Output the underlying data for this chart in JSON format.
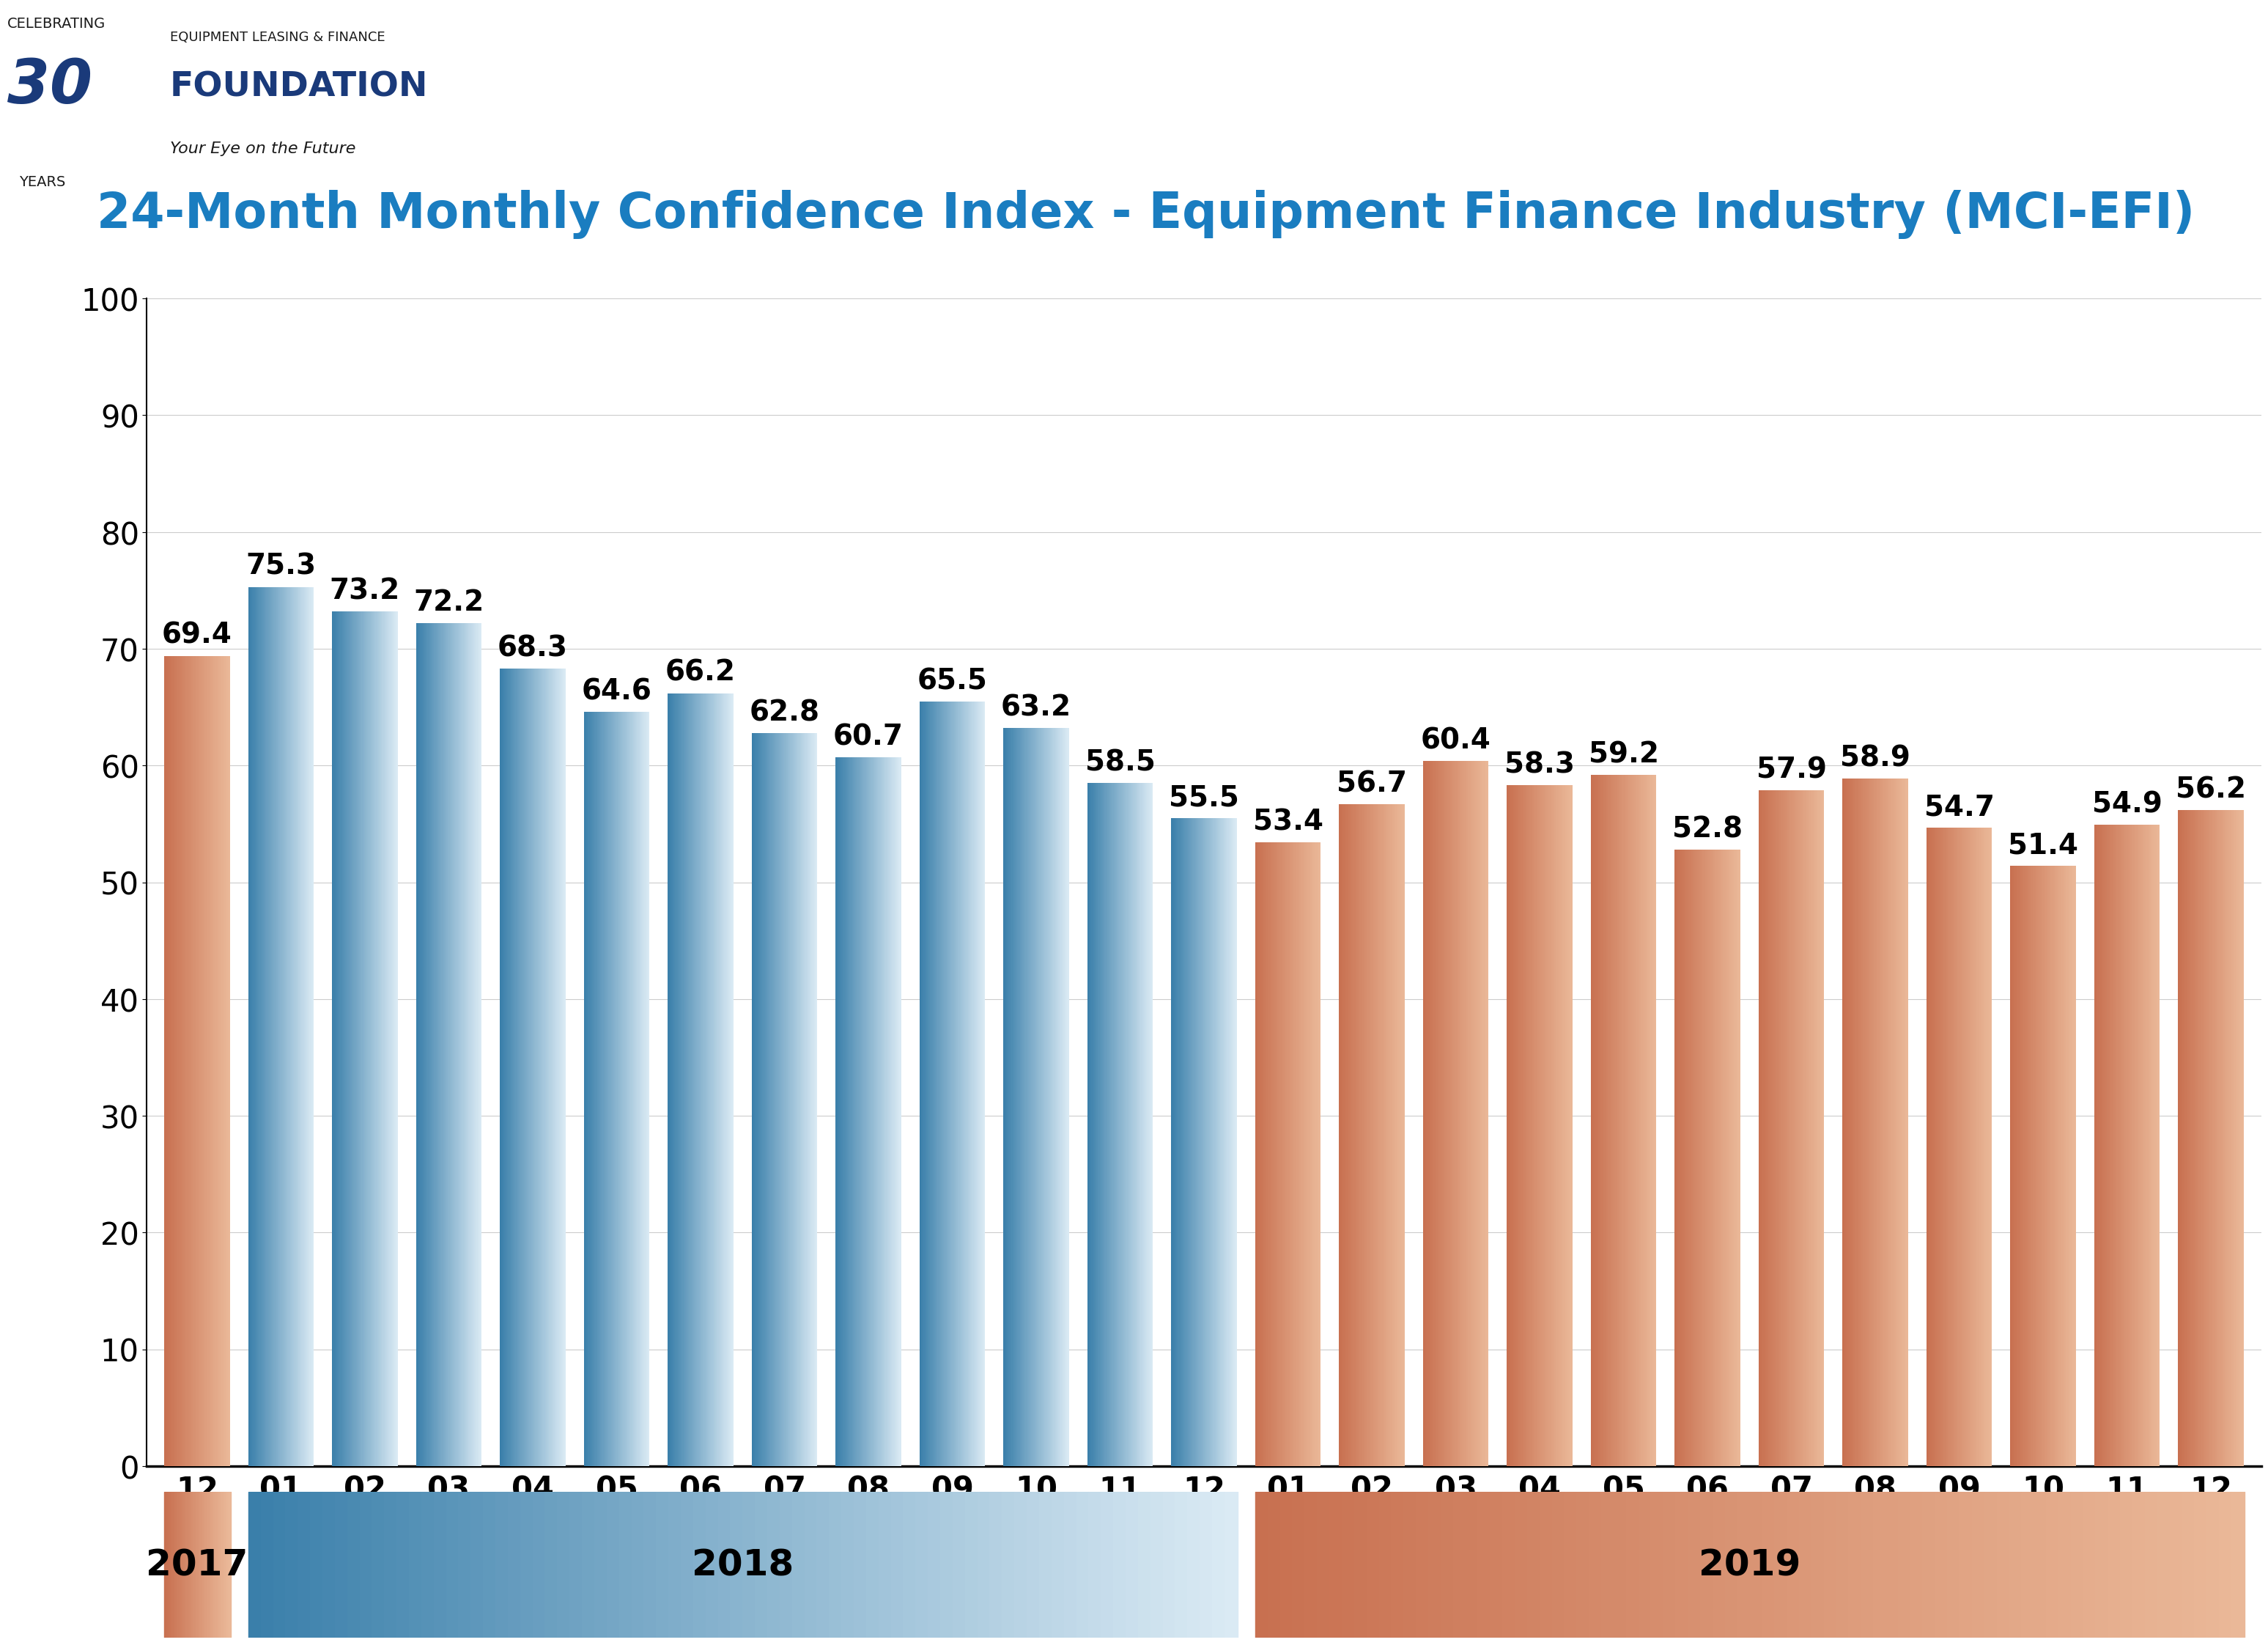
{
  "title": "24-Month Monthly Confidence Index - Equipment Finance Industry (MCI-EFI)",
  "categories": [
    "12",
    "01",
    "02",
    "03",
    "04",
    "05",
    "06",
    "07",
    "08",
    "09",
    "10",
    "11",
    "12",
    "01",
    "02",
    "03",
    "04",
    "05",
    "06",
    "07",
    "08",
    "09",
    "10",
    "11",
    "12"
  ],
  "values": [
    69.4,
    75.3,
    73.2,
    72.2,
    68.3,
    64.6,
    66.2,
    62.8,
    60.7,
    65.5,
    63.2,
    58.5,
    55.5,
    53.4,
    56.7,
    60.4,
    58.3,
    59.2,
    52.8,
    57.9,
    58.9,
    54.7,
    51.4,
    54.9,
    56.2
  ],
  "bar_type": [
    "2017",
    "2018",
    "2018",
    "2018",
    "2018",
    "2018",
    "2018",
    "2018",
    "2018",
    "2018",
    "2018",
    "2018",
    "2018",
    "2019",
    "2019",
    "2019",
    "2019",
    "2019",
    "2019",
    "2019",
    "2019",
    "2019",
    "2019",
    "2019",
    "2019"
  ],
  "year_ranges": {
    "2017": [
      0,
      0
    ],
    "2018": [
      1,
      12
    ],
    "2019": [
      13,
      24
    ]
  },
  "ylim": [
    0,
    100
  ],
  "yticks": [
    0,
    10,
    20,
    30,
    40,
    50,
    60,
    70,
    80,
    90,
    100
  ],
  "title_color": "#1a7dc0",
  "title_fontsize": 48,
  "value_fontsize": 28,
  "tick_fontsize": 30,
  "year_label_fontsize": 36,
  "logo_texts": {
    "celebrating": "CELEBRATING",
    "years": "YEARS",
    "elf": "EQUIPMENT LEASING & FINANCE",
    "foundation": "FOUNDATION",
    "tagline": "Your Eye on the Future"
  },
  "blue_left": "#3a7faa",
  "blue_right": "#daeaf4",
  "salmon_left": "#c87050",
  "salmon_right": "#eab898",
  "background_color": "#ffffff",
  "bar_width": 0.78,
  "gradient_steps": 80
}
